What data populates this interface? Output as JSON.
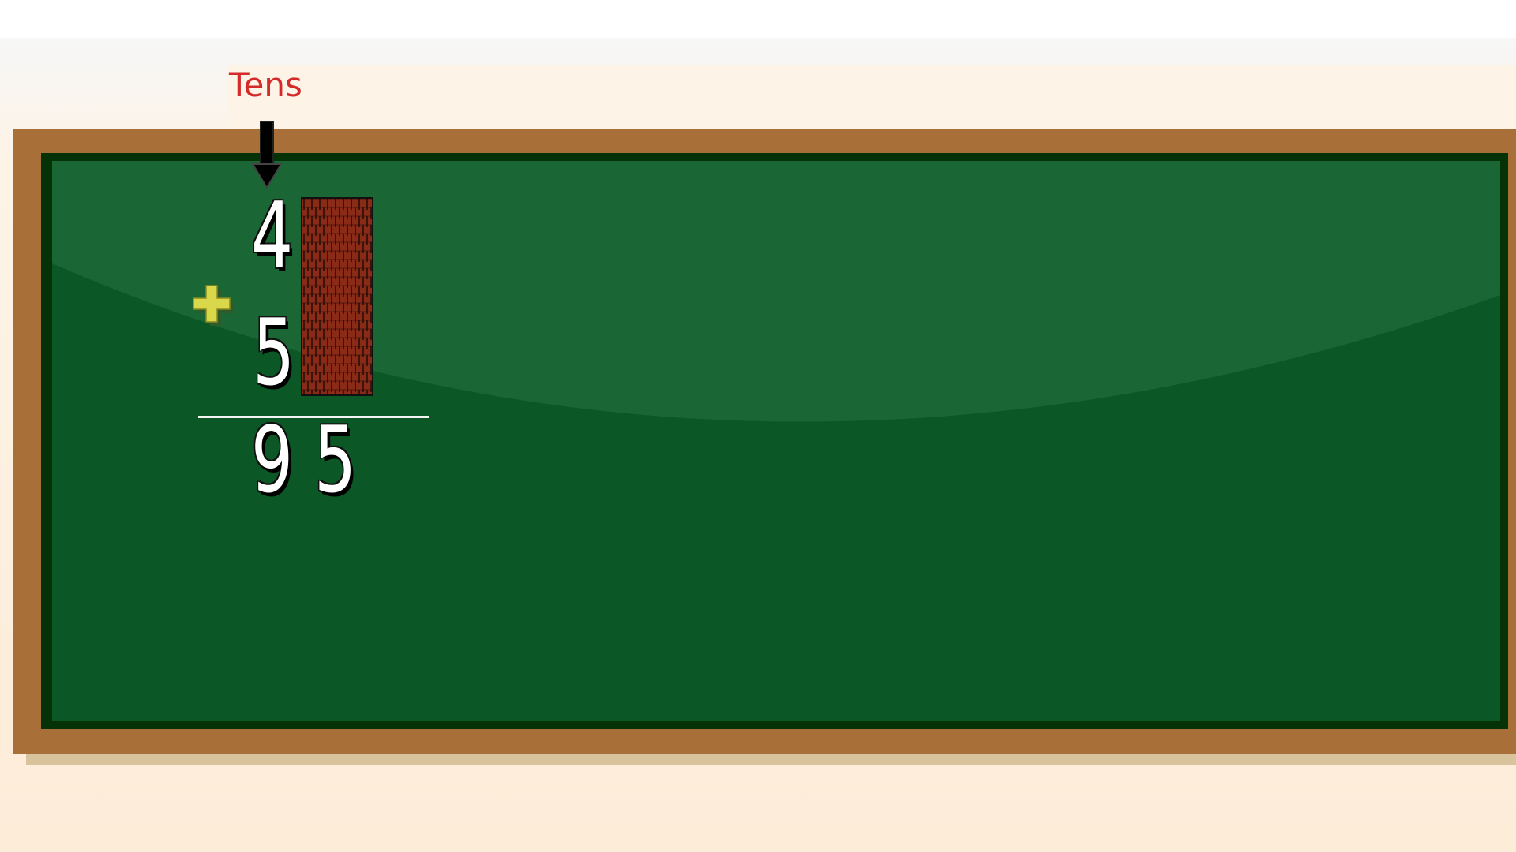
{
  "place_value_label": "Tens",
  "problem": {
    "top_digit": "4",
    "operator": "+",
    "bottom_digit": "5",
    "result_tens": "9",
    "result_ones": "5"
  },
  "colors": {
    "board_green": "#0c5726",
    "board_frame": "#a86f38",
    "label_red": "#d42a2a",
    "plus_yellow": "#d8d84a",
    "rod_brown": "#8a2b18"
  },
  "icons": {
    "arrow": "arrow-down-icon",
    "operator": "plus-icon",
    "manipulative": "tens-rod"
  }
}
